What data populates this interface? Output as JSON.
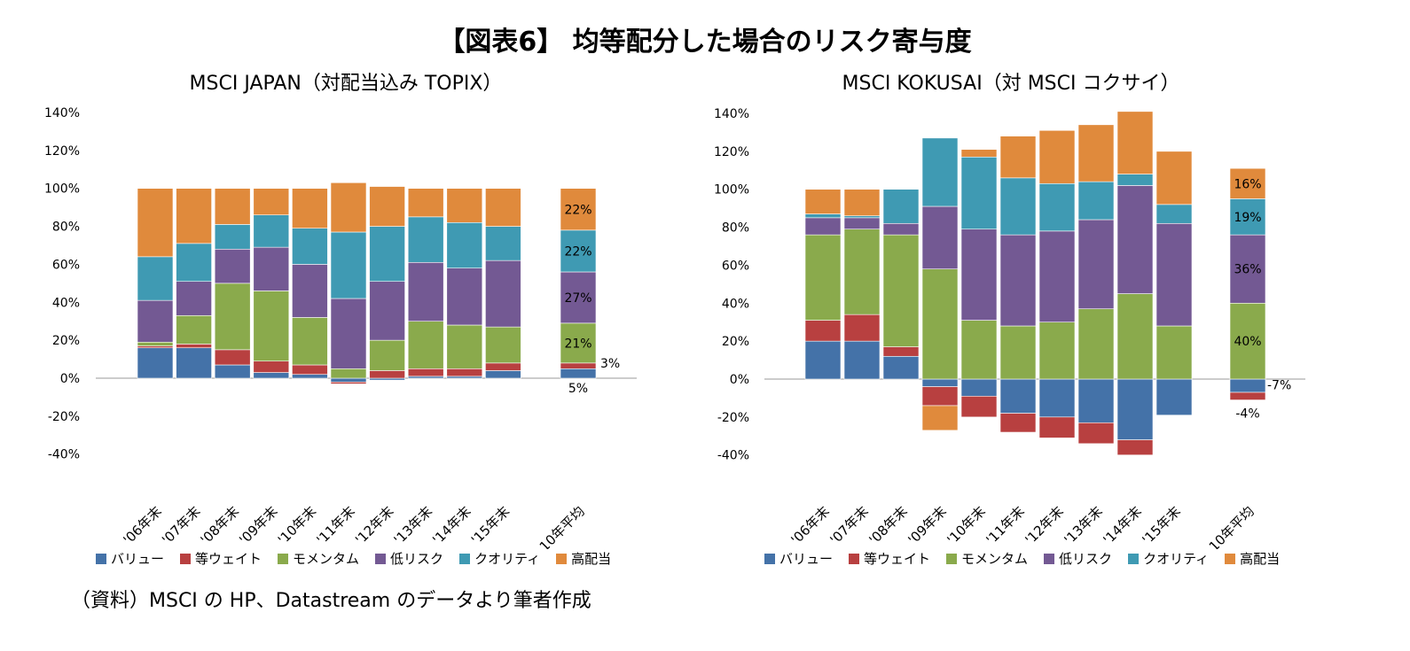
{
  "main_title": "【図表6】 均等配分した場合のリスク寄与度",
  "source_note": "（資料）MSCI の HP、Datastream のデータより筆者作成",
  "legend": [
    {
      "name": "バリュー",
      "color": "#4472a8"
    },
    {
      "name": "等ウェイト",
      "color": "#b84040"
    },
    {
      "name": "モメンタム",
      "color": "#8aaa4c"
    },
    {
      "name": "低リスク",
      "color": "#735993"
    },
    {
      "name": "クオリティ",
      "color": "#3f9ab3"
    },
    {
      "name": "高配当",
      "color": "#e08a3c"
    }
  ],
  "y_tick_labels": [
    "140%",
    "120%",
    "100%",
    "80%",
    "60%",
    "40%",
    "20%",
    "0%",
    "-20%",
    "-40%"
  ],
  "chart_data": [
    {
      "type": "bar",
      "stacked": true,
      "title": "MSCI JAPAN（対配当込み TOPIX）",
      "ylim": [
        -40,
        140
      ],
      "categories": [
        "'06年末",
        "'07年末",
        "'08年末",
        "'09年末",
        "'10年末",
        "'11年末",
        "'12年末",
        "'13年末",
        "'14年末",
        "'15年末",
        "10年平均"
      ],
      "series": [
        {
          "name": "バリュー",
          "values": [
            16,
            16,
            7,
            3,
            2,
            -2,
            -1,
            1,
            1,
            4,
            5
          ]
        },
        {
          "name": "等ウェイト",
          "values": [
            1,
            2,
            8,
            6,
            5,
            -1,
            4,
            4,
            4,
            4,
            3
          ]
        },
        {
          "name": "モメンタム",
          "values": [
            2,
            15,
            35,
            37,
            25,
            5,
            16,
            25,
            23,
            19,
            21
          ]
        },
        {
          "name": "低リスク",
          "values": [
            22,
            18,
            18,
            23,
            28,
            37,
            31,
            31,
            30,
            35,
            27
          ]
        },
        {
          "name": "クオリティ",
          "values": [
            23,
            20,
            13,
            17,
            19,
            35,
            29,
            24,
            24,
            18,
            22
          ]
        },
        {
          "name": "高配当",
          "values": [
            36,
            29,
            19,
            14,
            21,
            26,
            21,
            15,
            18,
            20,
            22
          ]
        }
      ],
      "data_labels": [
        {
          "series": "高配当",
          "category": "10年平均",
          "text": "22%"
        },
        {
          "series": "クオリティ",
          "category": "10年平均",
          "text": "22%"
        },
        {
          "series": "低リスク",
          "category": "10年平均",
          "text": "27%"
        },
        {
          "series": "モメンタム",
          "category": "10年平均",
          "text": "21%"
        },
        {
          "series": "等ウェイト",
          "category": "10年平均",
          "text": "3%"
        },
        {
          "series": "バリュー",
          "category": "10年平均",
          "text": "5%"
        }
      ]
    },
    {
      "type": "bar",
      "stacked": true,
      "title": "MSCI KOKUSAI（対 MSCI コクサイ）",
      "ylim": [
        -40,
        140
      ],
      "categories": [
        "'06年末",
        "'07年末",
        "'08年末",
        "'09年末",
        "'10年末",
        "'11年末",
        "'12年末",
        "'13年末",
        "'14年末",
        "'15年末",
        "10年平均"
      ],
      "series": [
        {
          "name": "バリュー",
          "values": [
            20,
            20,
            12,
            -4,
            -9,
            -18,
            -20,
            -23,
            -32,
            -19,
            -7
          ]
        },
        {
          "name": "等ウェイト",
          "values": [
            11,
            14,
            5,
            -10,
            -11,
            -10,
            -11,
            -11,
            -8,
            0,
            -4
          ]
        },
        {
          "name": "モメンタム",
          "values": [
            45,
            45,
            59,
            58,
            31,
            28,
            30,
            37,
            45,
            28,
            40
          ]
        },
        {
          "name": "低リスク",
          "values": [
            9,
            6,
            6,
            33,
            48,
            48,
            48,
            47,
            57,
            54,
            36
          ]
        },
        {
          "name": "クオリティ",
          "values": [
            2,
            1,
            18,
            36,
            38,
            30,
            25,
            20,
            6,
            10,
            19
          ]
        },
        {
          "name": "高配当",
          "values": [
            13,
            14,
            0,
            -13,
            4,
            22,
            28,
            30,
            33,
            28,
            16
          ]
        }
      ],
      "data_labels": [
        {
          "series": "高配当",
          "category": "10年平均",
          "text": "16%"
        },
        {
          "series": "クオリティ",
          "category": "10年平均",
          "text": "19%"
        },
        {
          "series": "低リスク",
          "category": "10年平均",
          "text": "36%"
        },
        {
          "series": "モメンタム",
          "category": "10年平均",
          "text": "40%"
        },
        {
          "series": "バリュー",
          "category": "10年平均",
          "text": "-7%"
        },
        {
          "series": "等ウェイト",
          "category": "10年平均",
          "text": "-4%"
        }
      ]
    }
  ]
}
